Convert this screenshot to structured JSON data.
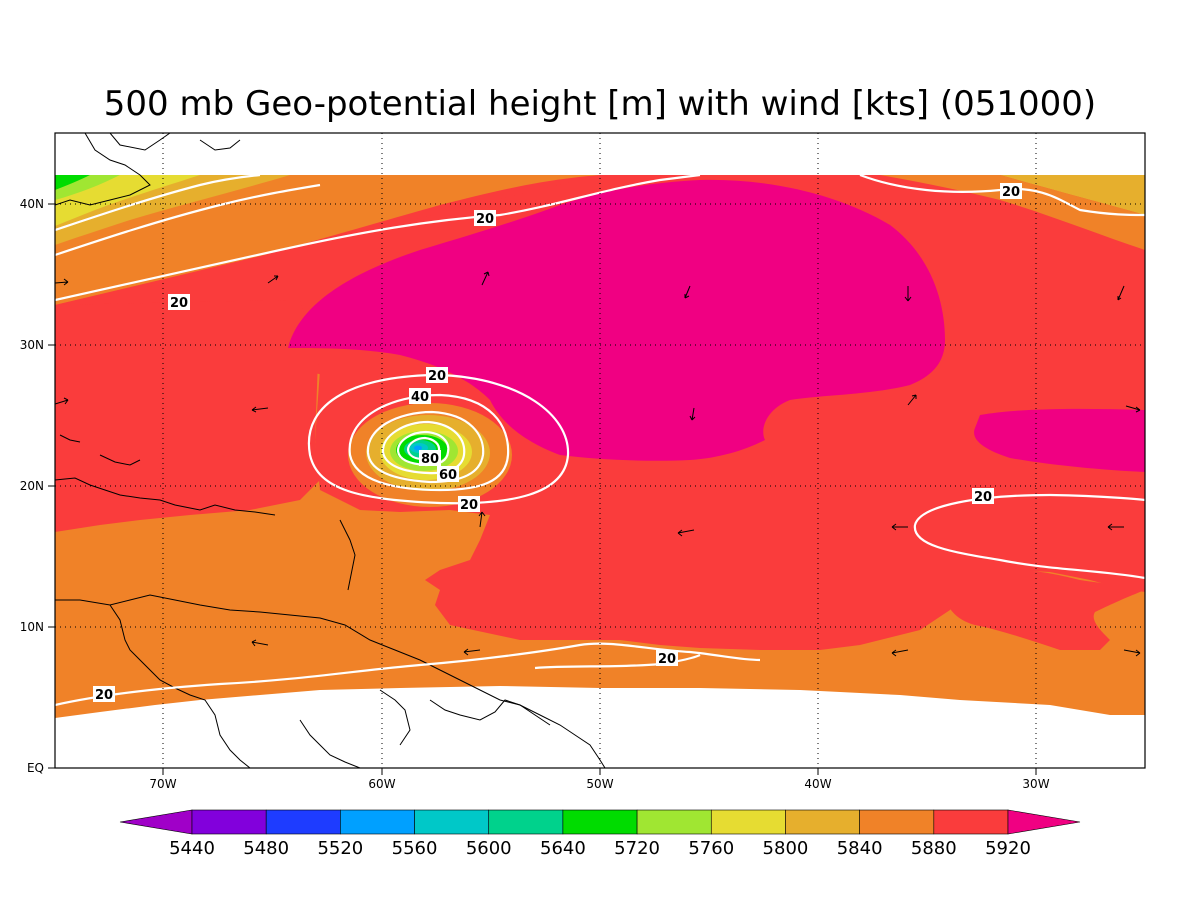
{
  "title": "500 mb Geo-potential height [m] with wind [kts] (051000)",
  "map": {
    "x_ticks": [
      "70W",
      "60W",
      "50W",
      "40W",
      "30W"
    ],
    "y_ticks": [
      "EQ",
      "10N",
      "20N",
      "30N",
      "40N"
    ],
    "lon_range": [
      -75,
      -25
    ],
    "lat_range": [
      0,
      45
    ],
    "grid": "dotted",
    "contour_labels": [
      "20",
      "20",
      "20",
      "20",
      "40",
      "60",
      "80",
      "20",
      "20",
      "20",
      "20"
    ]
  },
  "colorbar": {
    "labels": [
      "5440",
      "5480",
      "5520",
      "5560",
      "5600",
      "5640",
      "5720",
      "5760",
      "5800",
      "5840",
      "5880",
      "5920"
    ],
    "colors": [
      "#a000c8",
      "#8200dc",
      "#1e3cff",
      "#00a0ff",
      "#00c8c8",
      "#00d28c",
      "#00dc00",
      "#a0e632",
      "#e6dc32",
      "#e6af2d",
      "#f08228",
      "#fa3c3c",
      "#f00082"
    ]
  },
  "colors": {
    "field_5880": "#f08228",
    "field_5920": "#fa3c3c",
    "field_above": "#f00082",
    "field_5840": "#e6af2d",
    "field_5800": "#e6dc32",
    "field_5760": "#a0e632",
    "field_5720": "#00dc00",
    "field_5640": "#00d28c"
  }
}
